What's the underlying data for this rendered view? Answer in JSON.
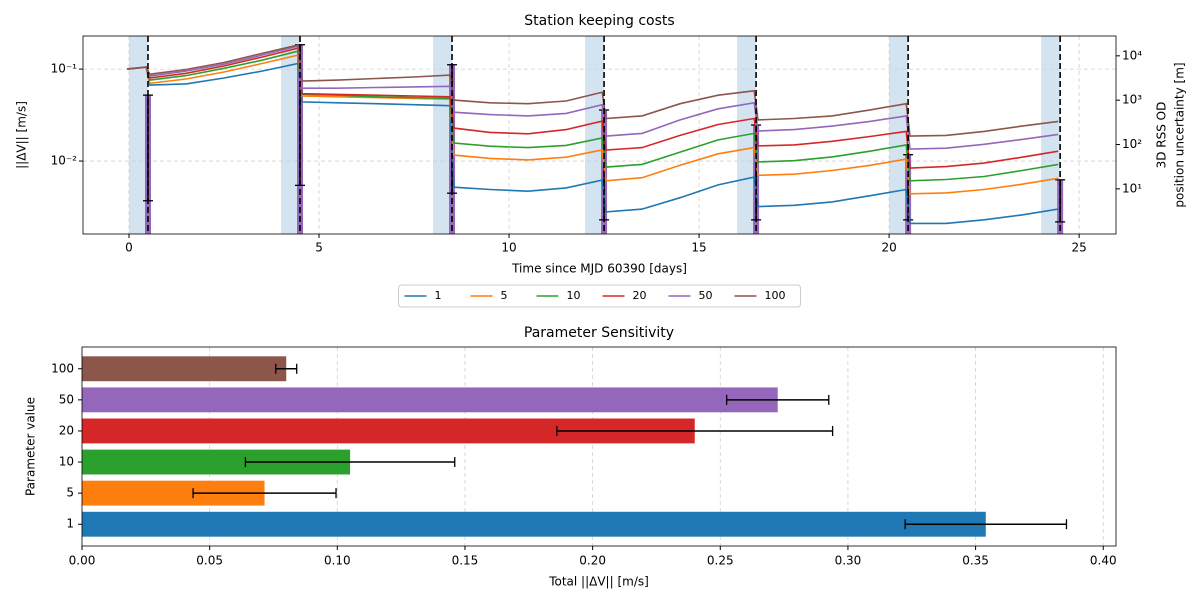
{
  "chart_data": [
    {
      "type": "line",
      "title": "Station keeping costs",
      "xlabel": "Time since MJD 60390 [days]",
      "ylabel": "||ΔV|| [m/s]",
      "y2label": [
        "3D RSS OD",
        "position uncertainty [m]"
      ],
      "xlim": [
        -1.21,
        25.97
      ],
      "xticks": [
        0,
        5,
        10,
        15,
        20,
        25
      ],
      "ylim": [
        0.00161,
        0.229
      ],
      "yscale": "log",
      "yticks": [
        {
          "value": 0.01,
          "label": "10⁻²"
        },
        {
          "value": 0.1,
          "label": "10⁻¹"
        }
      ],
      "y2lim": [
        0.96,
        28000
      ],
      "y2scale": "log",
      "y2ticks": [
        {
          "value": 10,
          "label": "10¹"
        },
        {
          "value": 100,
          "label": "10²"
        },
        {
          "value": 1000,
          "label": "10³"
        },
        {
          "value": 10000,
          "label": "10⁴"
        }
      ],
      "grid": true,
      "legend": "below",
      "shaded_spans": [
        [
          0,
          0.5
        ],
        [
          4,
          4.5
        ],
        [
          8,
          8.5
        ],
        [
          12,
          12.5
        ],
        [
          16,
          16.5
        ],
        [
          20,
          20.5
        ],
        [
          24,
          24.5
        ]
      ],
      "span_color": "#bcd4e6",
      "maneuver_times": [
        0.5,
        4.5,
        8.5,
        12.5,
        16.5,
        20.5,
        24.5
      ],
      "od_uncertainty": {
        "axis": "y2",
        "color": "#9467bd",
        "x": [
          0.5,
          4.5,
          8.5,
          12.5,
          16.5,
          20.5,
          24.5
        ],
        "values": [
          1300,
          17800,
          6300,
          600,
          275,
          59,
          16
        ],
        "low": [
          5.4,
          12,
          8,
          2,
          2,
          2,
          1.8
        ],
        "high": [
          1300,
          17800,
          6300,
          600,
          275,
          59,
          16
        ]
      },
      "x": [
        -0.05,
        0.45,
        0.55,
        1.5,
        2.5,
        3.5,
        4.45,
        4.55,
        5.5,
        6.5,
        7.5,
        8.45,
        8.55,
        9.5,
        10.5,
        11.5,
        12.45,
        12.55,
        13.5,
        14.5,
        15.5,
        16.45,
        16.55,
        17.5,
        18.5,
        19.5,
        20.45,
        20.55,
        21.5,
        22.5,
        23.5,
        24.45
      ],
      "series": [
        {
          "name": "1",
          "color": "#1f77b4",
          "values": [
            0.1,
            0.105,
            0.067,
            0.069,
            0.08,
            0.095,
            0.115,
            0.044,
            0.043,
            0.042,
            0.041,
            0.04,
            0.0052,
            0.0049,
            0.0047,
            0.0051,
            0.0062,
            0.0028,
            0.003,
            0.004,
            0.0055,
            0.0067,
            0.0032,
            0.0033,
            0.0036,
            0.0042,
            0.0049,
            0.0021,
            0.0021,
            0.0023,
            0.0026,
            0.003
          ]
        },
        {
          "name": "5",
          "color": "#ff7f0e",
          "values": [
            0.1,
            0.105,
            0.07,
            0.078,
            0.093,
            0.115,
            0.142,
            0.051,
            0.05,
            0.049,
            0.048,
            0.047,
            0.0116,
            0.0107,
            0.0103,
            0.011,
            0.0132,
            0.0061,
            0.0066,
            0.009,
            0.012,
            0.014,
            0.007,
            0.0072,
            0.0079,
            0.009,
            0.0105,
            0.0044,
            0.0045,
            0.0049,
            0.0056,
            0.0065
          ]
        },
        {
          "name": "10",
          "color": "#2ca02c",
          "values": [
            0.1,
            0.105,
            0.076,
            0.085,
            0.102,
            0.125,
            0.157,
            0.053,
            0.052,
            0.05,
            0.049,
            0.048,
            0.0157,
            0.0145,
            0.014,
            0.0148,
            0.0178,
            0.0086,
            0.0092,
            0.0125,
            0.017,
            0.02,
            0.0098,
            0.0101,
            0.0111,
            0.0128,
            0.015,
            0.0061,
            0.0063,
            0.0068,
            0.0079,
            0.0092
          ]
        },
        {
          "name": "20",
          "color": "#d62728",
          "values": [
            0.1,
            0.105,
            0.08,
            0.09,
            0.108,
            0.135,
            0.169,
            0.054,
            0.053,
            0.052,
            0.051,
            0.05,
            0.0228,
            0.0205,
            0.0198,
            0.022,
            0.0272,
            0.0132,
            0.014,
            0.019,
            0.025,
            0.029,
            0.0146,
            0.015,
            0.0164,
            0.0185,
            0.021,
            0.0084,
            0.0087,
            0.0095,
            0.011,
            0.0128
          ]
        },
        {
          "name": "50",
          "color": "#9467bd",
          "values": [
            0.1,
            0.105,
            0.084,
            0.095,
            0.113,
            0.142,
            0.178,
            0.062,
            0.062,
            0.063,
            0.064,
            0.065,
            0.034,
            0.032,
            0.031,
            0.033,
            0.041,
            0.0187,
            0.02,
            0.028,
            0.037,
            0.043,
            0.0212,
            0.022,
            0.024,
            0.027,
            0.031,
            0.0135,
            0.0138,
            0.0152,
            0.0172,
            0.0195
          ]
        },
        {
          "name": "100",
          "color": "#8c564b",
          "values": [
            0.1,
            0.105,
            0.088,
            0.099,
            0.118,
            0.148,
            0.183,
            0.074,
            0.076,
            0.079,
            0.082,
            0.086,
            0.046,
            0.043,
            0.042,
            0.045,
            0.056,
            0.029,
            0.031,
            0.042,
            0.052,
            0.058,
            0.028,
            0.029,
            0.031,
            0.036,
            0.042,
            0.0187,
            0.019,
            0.021,
            0.024,
            0.027
          ]
        }
      ]
    },
    {
      "type": "bar",
      "orientation": "horizontal",
      "title": "Parameter Sensitivity",
      "xlabel": "Total ||ΔV|| [m/s]",
      "ylabel": "Parameter value",
      "categories": [
        "1",
        "5",
        "10",
        "20",
        "50",
        "100"
      ],
      "values": [
        0.354,
        0.0715,
        0.105,
        0.24,
        0.2725,
        0.08
      ],
      "errors": [
        0.0316,
        0.028,
        0.041,
        0.054,
        0.02,
        0.0041
      ],
      "colors": [
        "#1f77b4",
        "#ff7f0e",
        "#2ca02c",
        "#d62728",
        "#9467bd",
        "#8c564b"
      ],
      "xlim": [
        0,
        0.405
      ],
      "xticks": [
        {
          "value": 0,
          "label": "0.00"
        },
        {
          "value": 0.05,
          "label": "0.05"
        },
        {
          "value": 0.1,
          "label": "0.10"
        },
        {
          "value": 0.15,
          "label": "0.15"
        },
        {
          "value": 0.2,
          "label": "0.20"
        },
        {
          "value": 0.25,
          "label": "0.25"
        },
        {
          "value": 0.3,
          "label": "0.30"
        },
        {
          "value": 0.35,
          "label": "0.35"
        },
        {
          "value": 0.4,
          "label": "0.40"
        }
      ],
      "grid": true
    }
  ]
}
